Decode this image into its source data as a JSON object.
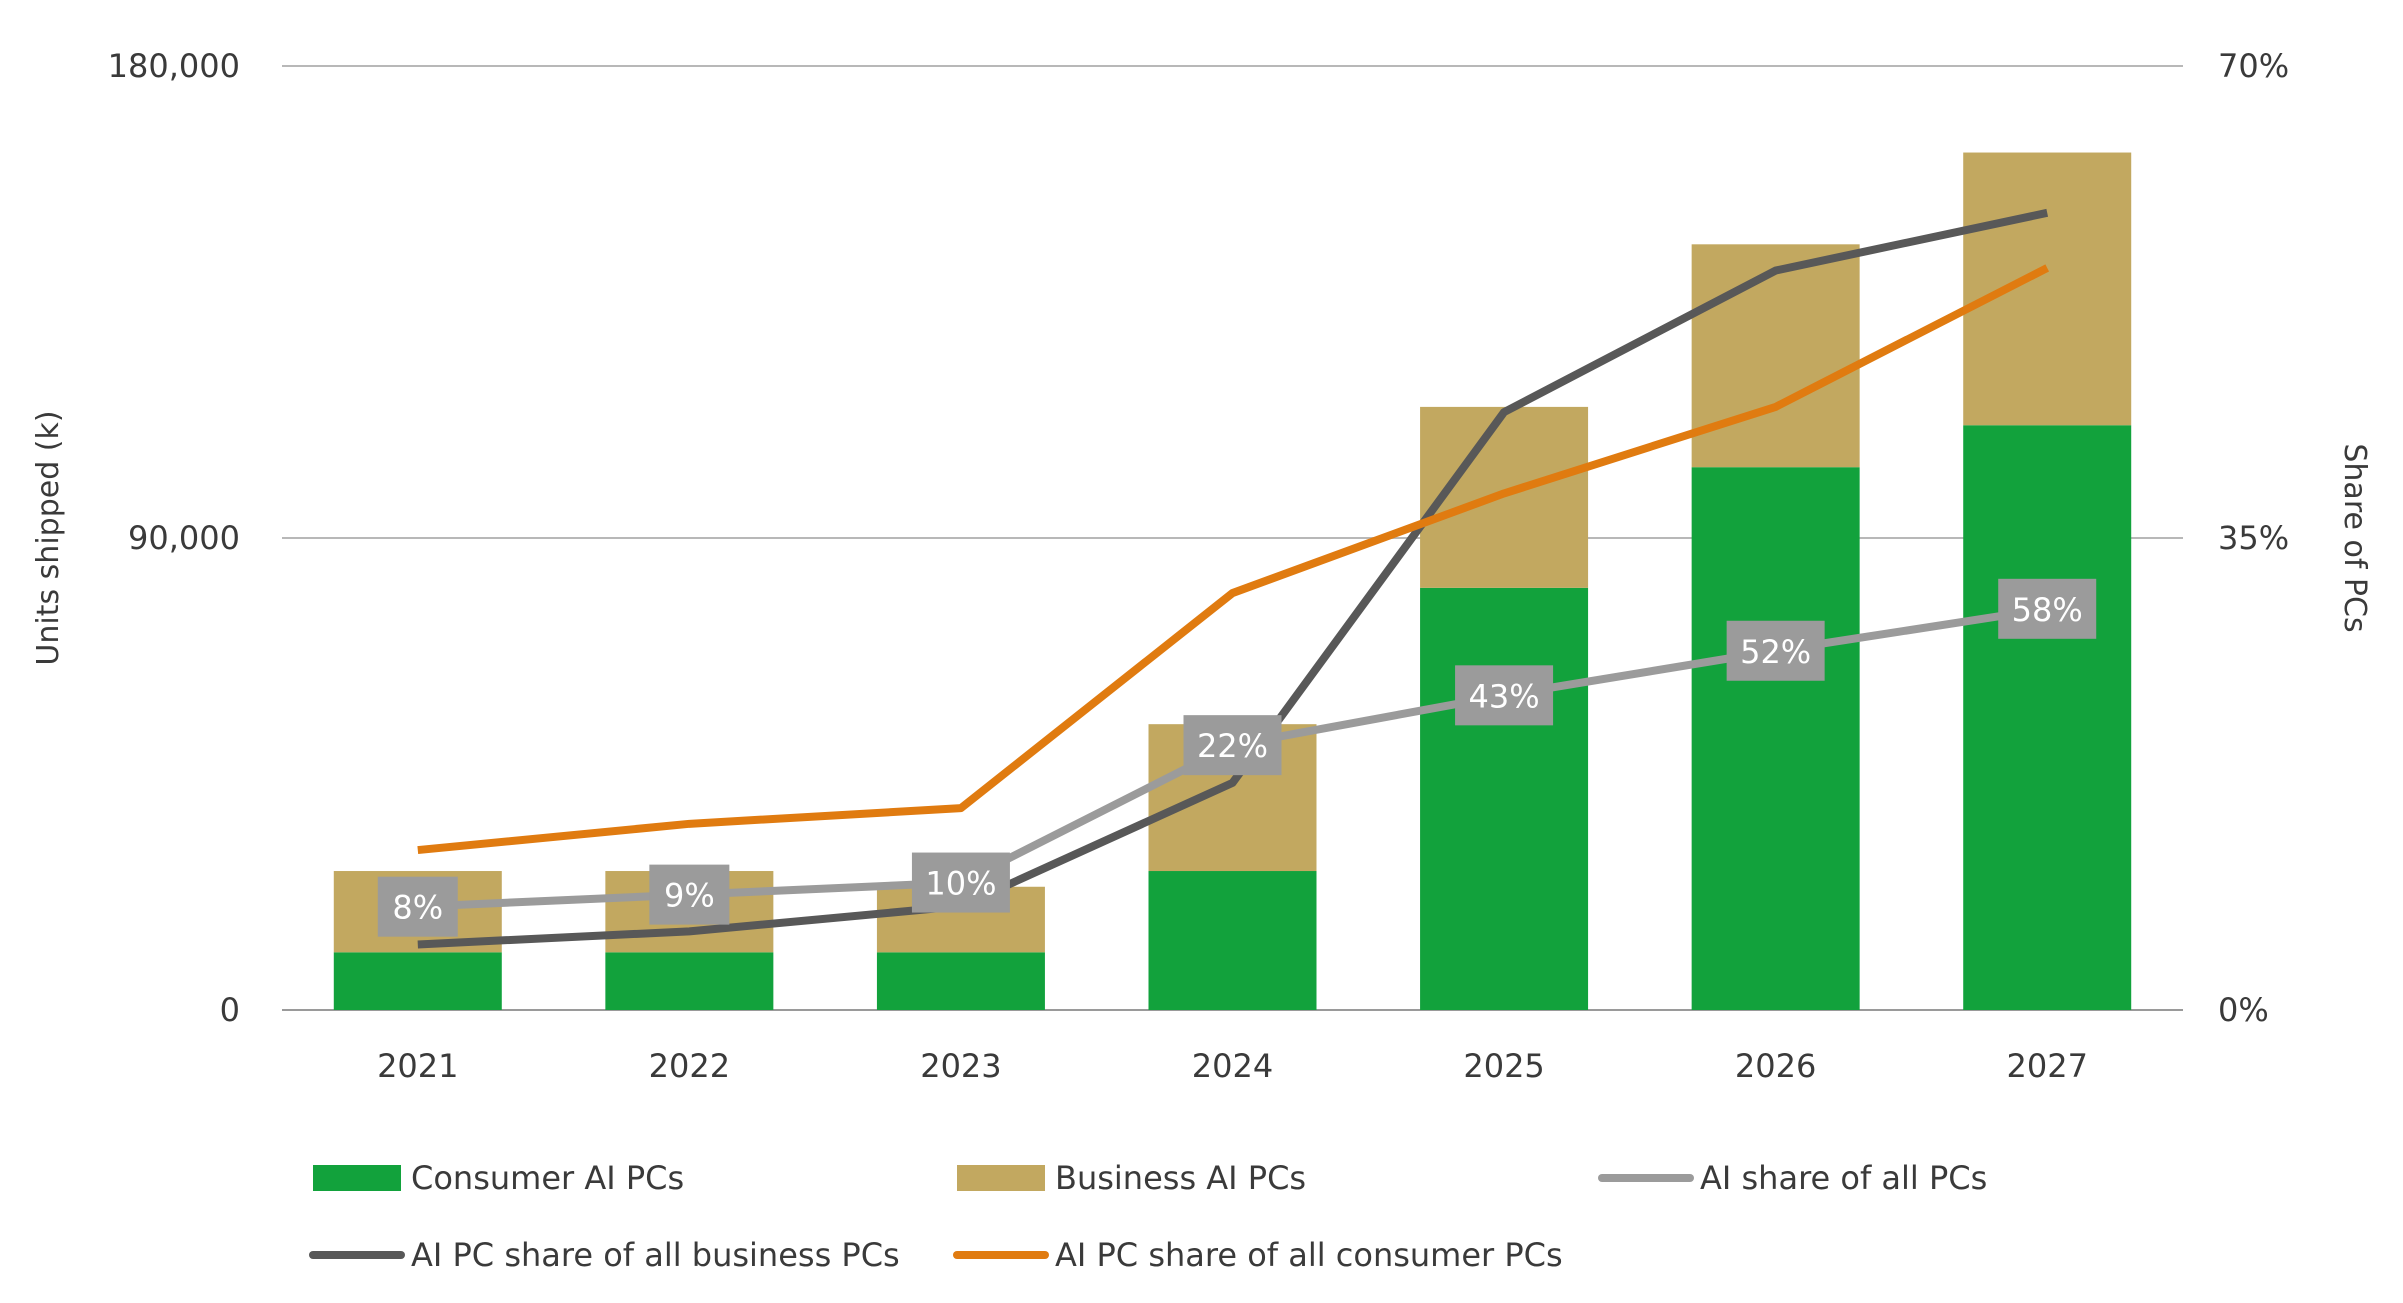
{
  "chart_data": {
    "type": "bar",
    "stacked": true,
    "categories": [
      "2021",
      "2022",
      "2023",
      "2024",
      "2025",
      "2026",
      "2027"
    ],
    "bar_series": [
      {
        "name": "Consumer AI PCs",
        "color": "#12a23c",
        "values": [
          11000,
          11000,
          11000,
          26500,
          80500,
          103500,
          111500
        ]
      },
      {
        "name": "Business AI PCs",
        "color": "#c2a860",
        "values": [
          15500,
          15500,
          12500,
          28000,
          34500,
          42500,
          52000
        ]
      }
    ],
    "line_series": [
      {
        "name": "AI share of all PCs",
        "color": "#9b9b9b",
        "values": [
          19.7,
          22.0,
          24.3,
          50.5,
          60.0,
          68.5,
          76.5
        ]
      },
      {
        "name": "AI PC share of all business PCs",
        "color": "#585858",
        "values": [
          12.5,
          15.0,
          19.8,
          43.3,
          114.0,
          141.0,
          152.0
        ]
      },
      {
        "name": "AI PC share of all consumer PCs",
        "color": "#e07b10",
        "values": [
          30.5,
          35.5,
          38.5,
          79.5,
          98.5,
          115.0,
          141.5
        ]
      }
    ],
    "line_value_units": "thousand units on primary axis scale",
    "data_labels": [
      "8%",
      "9%",
      "10%",
      "22%",
      "43%",
      "52%",
      "58%"
    ],
    "data_label_series": "AI share of all PCs",
    "y_left": {
      "label": "Units shipped (k)",
      "ticks": [
        "0",
        "90,000",
        "180,000"
      ],
      "tick_values": [
        0,
        90000,
        180000
      ],
      "range": [
        0,
        180000
      ]
    },
    "y_right": {
      "label": "Share of PCs",
      "ticks": [
        "0%",
        "35%",
        "70%"
      ],
      "tick_values": [
        0,
        35,
        70
      ],
      "range": [
        0,
        70
      ]
    },
    "grid": true,
    "legend_position": "bottom"
  }
}
